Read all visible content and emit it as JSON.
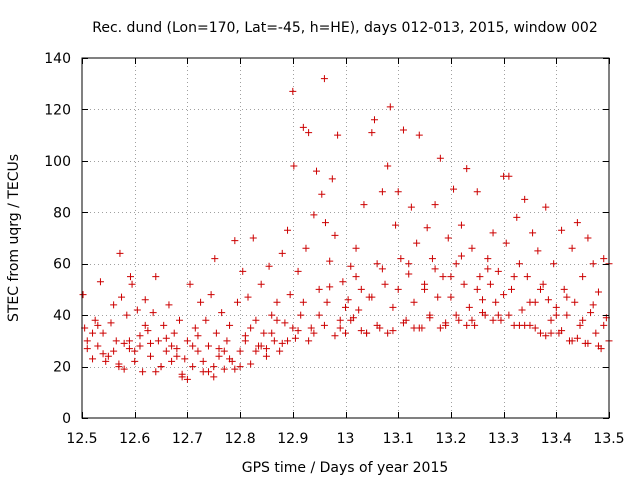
{
  "chart_data": {
    "type": "scatter",
    "title": "Rec. dund (Lon=170, Lat=-45, h=HE), days 012-013, 2015, window 002",
    "xlabel": "GPS time / Days of year 2015",
    "ylabel": "STEC from uqrg / TECUs",
    "xlim": [
      12.5,
      13.5
    ],
    "ylim": [
      0,
      140
    ],
    "xticks": [
      12.5,
      12.6,
      12.7,
      12.8,
      12.9,
      13.0,
      13.1,
      13.2,
      13.3,
      13.4,
      13.5
    ],
    "xtick_labels": [
      "12.5",
      "12.6",
      "12.7",
      "12.8",
      "12.9",
      "13",
      "13.1",
      "13.2",
      "13.3",
      "13.4",
      "13.5"
    ],
    "yticks": [
      0,
      20,
      40,
      60,
      80,
      100,
      120,
      140
    ],
    "ytick_labels": [
      "0",
      "20",
      "40",
      "60",
      "80",
      "100",
      "120",
      "140"
    ],
    "grid": true,
    "marker": "plus",
    "color": "#cc0000",
    "points": [
      [
        12.502,
        48
      ],
      [
        12.505,
        35
      ],
      [
        12.51,
        30
      ],
      [
        12.52,
        23
      ],
      [
        12.525,
        38
      ],
      [
        12.53,
        28
      ],
      [
        12.535,
        53
      ],
      [
        12.54,
        33
      ],
      [
        12.545,
        22
      ],
      [
        12.55,
        24
      ],
      [
        12.555,
        37
      ],
      [
        12.56,
        44
      ],
      [
        12.565,
        30
      ],
      [
        12.57,
        21
      ],
      [
        12.572,
        64
      ],
      [
        12.575,
        47
      ],
      [
        12.58,
        29
      ],
      [
        12.585,
        40
      ],
      [
        12.59,
        27
      ],
      [
        12.592,
        55
      ],
      [
        12.595,
        52
      ],
      [
        12.6,
        26
      ],
      [
        12.605,
        42
      ],
      [
        12.61,
        32
      ],
      [
        12.615,
        18
      ],
      [
        12.62,
        46
      ],
      [
        12.625,
        34
      ],
      [
        12.63,
        24
      ],
      [
        12.635,
        41
      ],
      [
        12.64,
        55
      ],
      [
        12.645,
        30
      ],
      [
        12.65,
        20
      ],
      [
        12.655,
        36
      ],
      [
        12.66,
        26
      ],
      [
        12.665,
        44
      ],
      [
        12.67,
        22
      ],
      [
        12.675,
        33
      ],
      [
        12.68,
        27
      ],
      [
        12.685,
        38
      ],
      [
        12.69,
        17
      ],
      [
        12.695,
        23
      ],
      [
        12.7,
        30
      ],
      [
        12.705,
        52
      ],
      [
        12.71,
        20
      ],
      [
        12.715,
        35
      ],
      [
        12.72,
        26
      ],
      [
        12.725,
        45
      ],
      [
        12.73,
        18
      ],
      [
        12.735,
        38
      ],
      [
        12.74,
        28
      ],
      [
        12.745,
        48
      ],
      [
        12.75,
        20
      ],
      [
        12.752,
        62
      ],
      [
        12.755,
        33
      ],
      [
        12.76,
        24
      ],
      [
        12.765,
        41
      ],
      [
        12.77,
        19
      ],
      [
        12.775,
        30
      ],
      [
        12.78,
        36
      ],
      [
        12.785,
        22
      ],
      [
        12.79,
        69
      ],
      [
        12.795,
        45
      ],
      [
        12.8,
        26
      ],
      [
        12.805,
        57
      ],
      [
        12.81,
        32
      ],
      [
        12.815,
        47
      ],
      [
        12.82,
        21
      ],
      [
        12.825,
        70
      ],
      [
        12.83,
        38
      ],
      [
        12.835,
        28
      ],
      [
        12.84,
        52
      ],
      [
        12.845,
        33
      ],
      [
        12.85,
        24
      ],
      [
        12.855,
        59
      ],
      [
        12.86,
        40
      ],
      [
        12.865,
        30
      ],
      [
        12.87,
        45
      ],
      [
        12.875,
        26
      ],
      [
        12.88,
        64
      ],
      [
        12.885,
        37
      ],
      [
        12.89,
        73
      ],
      [
        12.895,
        48
      ],
      [
        12.9,
        127
      ],
      [
        12.902,
        98
      ],
      [
        12.905,
        31
      ],
      [
        12.91,
        57
      ],
      [
        12.915,
        40
      ],
      [
        12.92,
        113
      ],
      [
        12.925,
        66
      ],
      [
        12.93,
        111
      ],
      [
        12.935,
        35
      ],
      [
        12.94,
        79
      ],
      [
        12.945,
        96
      ],
      [
        12.95,
        50
      ],
      [
        12.955,
        87
      ],
      [
        12.96,
        132
      ],
      [
        12.962,
        76
      ],
      [
        12.965,
        45
      ],
      [
        12.97,
        61
      ],
      [
        12.975,
        93
      ],
      [
        12.98,
        71
      ],
      [
        12.985,
        110
      ],
      [
        12.99,
        38
      ],
      [
        12.995,
        53
      ],
      [
        13.0,
        33
      ],
      [
        13.005,
        46
      ],
      [
        13.01,
        59
      ],
      [
        13.015,
        39
      ],
      [
        13.02,
        66
      ],
      [
        13.025,
        42
      ],
      [
        13.03,
        50
      ],
      [
        13.035,
        83
      ],
      [
        13.04,
        33
      ],
      [
        13.045,
        47
      ],
      [
        13.05,
        111
      ],
      [
        13.055,
        116
      ],
      [
        13.06,
        60
      ],
      [
        13.065,
        35
      ],
      [
        13.07,
        88
      ],
      [
        13.075,
        52
      ],
      [
        13.08,
        98
      ],
      [
        13.085,
        121
      ],
      [
        13.09,
        43
      ],
      [
        13.095,
        75
      ],
      [
        13.1,
        88
      ],
      [
        13.105,
        62
      ],
      [
        13.11,
        112
      ],
      [
        13.115,
        38
      ],
      [
        13.12,
        56
      ],
      [
        13.125,
        82
      ],
      [
        13.13,
        45
      ],
      [
        13.135,
        68
      ],
      [
        13.14,
        110
      ],
      [
        13.145,
        35
      ],
      [
        13.15,
        50
      ],
      [
        13.155,
        74
      ],
      [
        13.16,
        40
      ],
      [
        13.165,
        62
      ],
      [
        13.17,
        83
      ],
      [
        13.175,
        47
      ],
      [
        13.18,
        101
      ],
      [
        13.185,
        55
      ],
      [
        13.19,
        36
      ],
      [
        13.195,
        70
      ],
      [
        13.2,
        47
      ],
      [
        13.205,
        89
      ],
      [
        13.21,
        60
      ],
      [
        13.215,
        38
      ],
      [
        13.22,
        75
      ],
      [
        13.225,
        52
      ],
      [
        13.23,
        97
      ],
      [
        13.235,
        43
      ],
      [
        13.24,
        66
      ],
      [
        13.245,
        36
      ],
      [
        13.25,
        88
      ],
      [
        13.255,
        55
      ],
      [
        13.26,
        46
      ],
      [
        13.265,
        40
      ],
      [
        13.27,
        62
      ],
      [
        13.275,
        52
      ],
      [
        13.28,
        72
      ],
      [
        13.285,
        45
      ],
      [
        13.29,
        57
      ],
      [
        13.295,
        38
      ],
      [
        13.3,
        94
      ],
      [
        13.305,
        68
      ],
      [
        13.31,
        94
      ],
      [
        13.315,
        50
      ],
      [
        13.32,
        36
      ],
      [
        13.325,
        78
      ],
      [
        13.33,
        60
      ],
      [
        13.335,
        42
      ],
      [
        13.34,
        85
      ],
      [
        13.345,
        55
      ],
      [
        13.35,
        36
      ],
      [
        13.355,
        72
      ],
      [
        13.36,
        45
      ],
      [
        13.365,
        65
      ],
      [
        13.37,
        33
      ],
      [
        13.375,
        52
      ],
      [
        13.38,
        82
      ],
      [
        13.385,
        46
      ],
      [
        13.39,
        38
      ],
      [
        13.395,
        60
      ],
      [
        13.4,
        43
      ],
      [
        13.405,
        33
      ],
      [
        13.41,
        73
      ],
      [
        13.415,
        50
      ],
      [
        13.42,
        40
      ],
      [
        13.425,
        30
      ],
      [
        13.43,
        66
      ],
      [
        13.435,
        45
      ],
      [
        13.44,
        76
      ],
      [
        13.445,
        36
      ],
      [
        13.45,
        55
      ],
      [
        13.455,
        29
      ],
      [
        13.46,
        70
      ],
      [
        13.465,
        41
      ],
      [
        13.47,
        60
      ],
      [
        13.475,
        33
      ],
      [
        13.48,
        49
      ],
      [
        13.485,
        27
      ],
      [
        13.49,
        62
      ],
      [
        13.495,
        39
      ],
      [
        13.5,
        60
      ],
      [
        12.51,
        27
      ],
      [
        12.53,
        36
      ],
      [
        12.56,
        26
      ],
      [
        12.59,
        30
      ],
      [
        12.61,
        28
      ],
      [
        12.63,
        29
      ],
      [
        12.66,
        31
      ],
      [
        12.68,
        24
      ],
      [
        12.71,
        28
      ],
      [
        12.73,
        22
      ],
      [
        12.76,
        27
      ],
      [
        12.78,
        23
      ],
      [
        12.81,
        30
      ],
      [
        12.83,
        26
      ],
      [
        12.86,
        33
      ],
      [
        12.88,
        29
      ],
      [
        12.91,
        34
      ],
      [
        12.93,
        30
      ],
      [
        12.96,
        36
      ],
      [
        12.98,
        32
      ],
      [
        13.01,
        38
      ],
      [
        13.03,
        34
      ],
      [
        13.06,
        36
      ],
      [
        13.08,
        33
      ],
      [
        13.11,
        37
      ],
      [
        13.13,
        35
      ],
      [
        13.16,
        39
      ],
      [
        13.18,
        35
      ],
      [
        13.21,
        40
      ],
      [
        13.23,
        36
      ],
      [
        13.26,
        41
      ],
      [
        13.28,
        38
      ],
      [
        13.31,
        40
      ],
      [
        13.33,
        36
      ],
      [
        13.36,
        35
      ],
      [
        13.38,
        32
      ],
      [
        13.41,
        34
      ],
      [
        13.43,
        30
      ],
      [
        13.46,
        29
      ],
      [
        13.48,
        28
      ],
      [
        12.52,
        33
      ],
      [
        12.54,
        25
      ],
      [
        12.57,
        20
      ],
      [
        12.6,
        22
      ],
      [
        12.62,
        36
      ],
      [
        12.65,
        20
      ],
      [
        12.67,
        28
      ],
      [
        12.7,
        15
      ],
      [
        12.72,
        32
      ],
      [
        12.75,
        16
      ],
      [
        12.77,
        26
      ],
      [
        12.8,
        20
      ],
      [
        12.82,
        35
      ],
      [
        12.85,
        27
      ],
      [
        12.87,
        38
      ],
      [
        12.9,
        35
      ],
      [
        12.92,
        45
      ],
      [
        12.95,
        40
      ],
      [
        12.97,
        51
      ],
      [
        13.0,
        43
      ],
      [
        13.02,
        55
      ],
      [
        13.05,
        47
      ],
      [
        13.07,
        58
      ],
      [
        13.1,
        50
      ],
      [
        13.12,
        60
      ],
      [
        13.15,
        52
      ],
      [
        13.17,
        58
      ],
      [
        13.2,
        55
      ],
      [
        13.22,
        63
      ],
      [
        13.25,
        50
      ],
      [
        13.27,
        58
      ],
      [
        13.3,
        48
      ],
      [
        13.32,
        55
      ],
      [
        13.35,
        45
      ],
      [
        13.37,
        50
      ],
      [
        13.4,
        40
      ],
      [
        13.42,
        47
      ],
      [
        13.45,
        38
      ],
      [
        13.47,
        44
      ],
      [
        13.49,
        36
      ],
      [
        12.58,
        19
      ],
      [
        12.64,
        18
      ],
      [
        12.69,
        16
      ],
      [
        12.74,
        18
      ],
      [
        12.79,
        19
      ],
      [
        12.84,
        28
      ],
      [
        12.89,
        30
      ],
      [
        12.94,
        33
      ],
      [
        12.99,
        35
      ],
      [
        13.04,
        33
      ],
      [
        13.09,
        34
      ],
      [
        13.14,
        35
      ],
      [
        13.19,
        37
      ],
      [
        13.24,
        38
      ],
      [
        13.29,
        40
      ],
      [
        13.34,
        36
      ],
      [
        13.39,
        33
      ],
      [
        13.44,
        31
      ],
      [
        13.5,
        30
      ]
    ]
  }
}
